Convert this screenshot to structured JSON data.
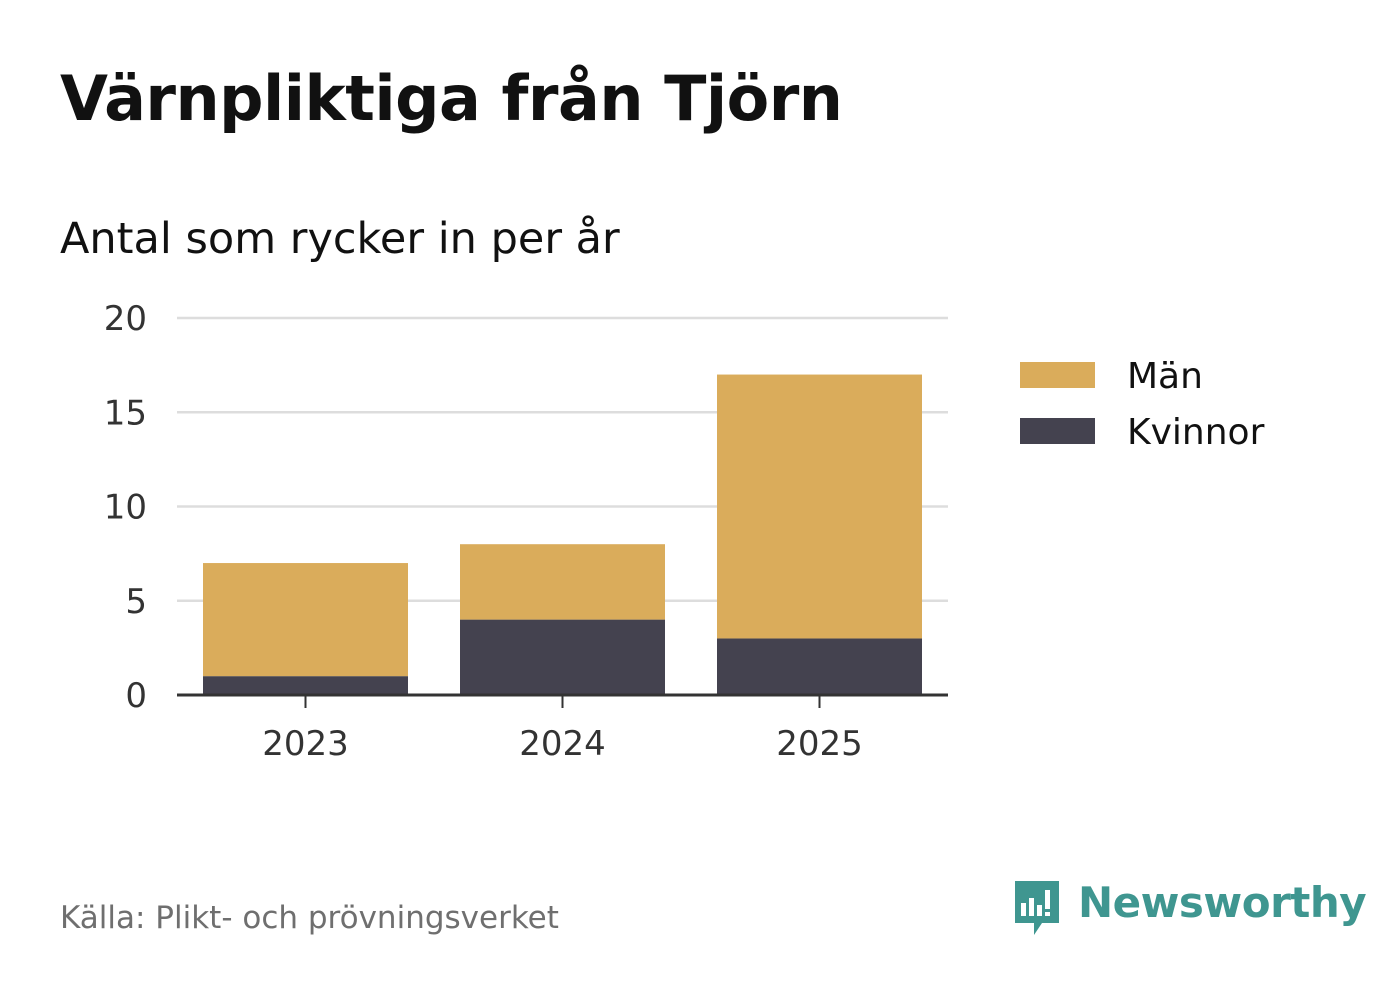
{
  "header": {
    "title": "Värnpliktiga från Tjörn",
    "subtitle": "Antal som rycker in per år"
  },
  "chart_data": {
    "type": "bar",
    "stacked": true,
    "categories": [
      "2023",
      "2024",
      "2025"
    ],
    "series": [
      {
        "name": "Kvinnor",
        "values": [
          1,
          4,
          3
        ],
        "color": "#44424f"
      },
      {
        "name": "Män",
        "values": [
          6,
          4,
          14
        ],
        "color": "#daac5b"
      }
    ],
    "legend_order": [
      "Män",
      "Kvinnor"
    ],
    "ylim": [
      0,
      20
    ],
    "yticks": [
      0,
      5,
      10,
      15,
      20
    ],
    "grid": true,
    "legend_position": "right"
  },
  "footer": {
    "source": "Källa: Plikt- och prövningsverket",
    "brand": "Newsworthy",
    "brand_icon": "newsworthy-logo-icon",
    "brand_color": "#3f9690"
  }
}
